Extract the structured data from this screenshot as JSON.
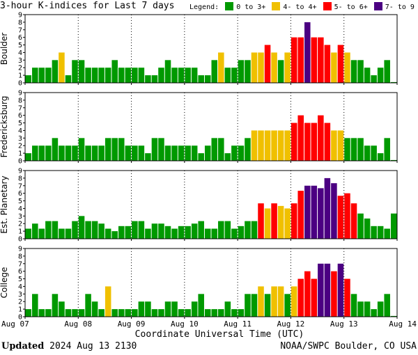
{
  "title": "3-hour K-indices for Last 7 days",
  "legend": {
    "label": "Legend:",
    "items": [
      {
        "label": "0 to 3+",
        "color": "#009900"
      },
      {
        "label": "4- to 4+",
        "color": "#f0c000"
      },
      {
        "label": "5- to 6+",
        "color": "#ff0000"
      },
      {
        "label": "7- to 9",
        "color": "#4b0082"
      }
    ]
  },
  "footer": {
    "updated_label": "Updated",
    "updated_time": "2024 Aug 13 2130",
    "credit": "NOAA/SWPC Boulder, CO USA"
  },
  "chart_data": {
    "type": "bar",
    "xlabel": "Coordinate Universal Time (UTC)",
    "x_ticks": [
      "Aug 07",
      "Aug 08",
      "Aug 09",
      "Aug 10",
      "Aug 11",
      "Aug 12",
      "Aug 13",
      "Aug 14"
    ],
    "y_ticks": [
      "0",
      "1",
      "2",
      "3",
      "4",
      "5",
      "6",
      "7",
      "8",
      "9"
    ],
    "ylim": [
      0,
      9
    ],
    "bars_per_day": 8,
    "grid": true,
    "panels": [
      {
        "name": "Boulder",
        "values": [
          1,
          2,
          2,
          2,
          3,
          4,
          1,
          3,
          3,
          2,
          2,
          2,
          2,
          3,
          2,
          2,
          2,
          2,
          1,
          1,
          2,
          3,
          2,
          2,
          2,
          2,
          1,
          1,
          3,
          4,
          2,
          2,
          3,
          3,
          4,
          4,
          5,
          4,
          3,
          4,
          6,
          6,
          8,
          6,
          6,
          5,
          4,
          5,
          4,
          3,
          3,
          2,
          1,
          2,
          3,
          0.1
        ]
      },
      {
        "name": "Fredericksburg",
        "values": [
          1,
          2,
          2,
          2,
          3,
          2,
          2,
          2,
          3,
          2,
          2,
          2,
          3,
          3,
          3,
          2,
          2,
          2,
          1,
          3,
          3,
          2,
          2,
          2,
          2,
          2,
          1,
          2,
          3,
          3,
          1,
          2,
          2,
          3,
          4,
          4,
          4,
          4,
          4,
          4,
          5,
          6,
          5,
          5,
          6,
          5,
          4,
          4,
          3,
          3,
          3,
          2,
          2,
          1,
          3,
          0.1
        ]
      },
      {
        "name": "Est. Planetary",
        "values": [
          1.33,
          2,
          1.33,
          2.33,
          2.33,
          1.33,
          1.33,
          2.33,
          3,
          2.33,
          2.33,
          2,
          1.33,
          1,
          1.67,
          1.67,
          2.33,
          2.33,
          1.33,
          2,
          2,
          1.67,
          1.33,
          1.67,
          1.67,
          2,
          2.33,
          1.33,
          1.33,
          2.33,
          2.33,
          1.33,
          1.67,
          2.33,
          2.33,
          4.67,
          4,
          4.67,
          4.33,
          4,
          4.67,
          6.33,
          7,
          7,
          6.67,
          8,
          7.33,
          5.67,
          6,
          4.67,
          3.33,
          2.67,
          1.67,
          1.67,
          1.33,
          3.33
        ]
      },
      {
        "name": "College",
        "values": [
          1,
          3,
          1,
          1,
          3,
          2,
          1,
          1,
          1,
          3,
          2,
          1,
          4,
          1,
          1,
          1,
          1,
          2,
          2,
          1,
          1,
          2,
          2,
          1,
          1,
          2,
          3,
          1,
          1,
          1,
          2,
          1,
          1,
          3,
          3,
          4,
          3,
          4,
          4,
          3,
          4,
          5,
          6,
          5,
          7,
          7,
          6,
          7,
          5,
          3,
          2,
          2,
          1,
          2,
          3,
          0.1
        ]
      }
    ]
  }
}
